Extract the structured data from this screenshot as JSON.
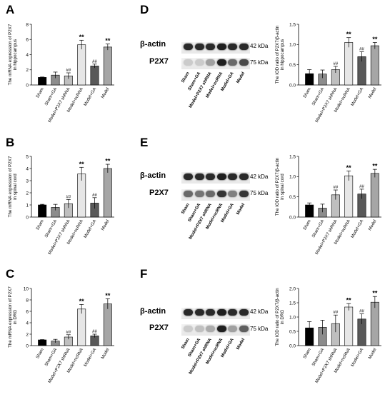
{
  "panels": {
    "a": {
      "letter": "A"
    },
    "b": {
      "letter": "B"
    },
    "c": {
      "letter": "C"
    },
    "d": {
      "letter": "D",
      "beta": "β-actin",
      "p2x7": "P2X7",
      "kda_beta": "42 kDa",
      "kda_p2x7": "75 kDa"
    },
    "e": {
      "letter": "E",
      "beta": "β-actin",
      "p2x7": "P2X7",
      "kda_beta": "42 kDa",
      "kda_p2x7": "75 kDa"
    },
    "f": {
      "letter": "F",
      "beta": "β-actin",
      "p2x7": "P2X7",
      "kda_beta": "42 kDa",
      "kda_p2x7": "75 kDa"
    }
  },
  "blot_lanes": [
    "Sham",
    "Sham+GA",
    "Model+P2X7 shRNA",
    "Model+ncRNA",
    "Model+GA",
    "Model"
  ],
  "blot_intensity": {
    "d": {
      "beta": [
        0.9,
        0.9,
        0.9,
        0.95,
        0.9,
        0.9
      ],
      "p2x7": [
        0.15,
        0.15,
        0.35,
        0.95,
        0.6,
        0.75
      ]
    },
    "e": {
      "beta": [
        0.9,
        0.9,
        0.9,
        0.95,
        0.9,
        0.9
      ],
      "p2x7": [
        0.6,
        0.55,
        0.6,
        0.85,
        0.5,
        0.85
      ]
    },
    "f": {
      "beta": [
        0.9,
        0.9,
        0.9,
        0.95,
        0.9,
        0.9
      ],
      "p2x7": [
        0.15,
        0.2,
        0.3,
        0.95,
        0.35,
        0.65
      ]
    }
  },
  "chart_data": [
    {
      "id": "a",
      "type": "bar",
      "ylabel": [
        "The mRNA expression of P2X7",
        "in hippocampus"
      ],
      "categories": [
        "Sham",
        "Sham+GA",
        "Model+P2X7 shRNA",
        "Model+ncRNA",
        "Model+GA",
        "Model"
      ],
      "values": [
        1.0,
        1.3,
        1.2,
        5.3,
        2.5,
        5.0
      ],
      "errors": [
        0.05,
        0.4,
        0.4,
        0.6,
        0.25,
        0.4
      ],
      "ylim": [
        0,
        8
      ],
      "yticks": [
        0,
        2,
        4,
        6,
        8
      ],
      "annotations": [
        "",
        "",
        "##",
        "**",
        "##",
        "**"
      ]
    },
    {
      "id": "b",
      "type": "bar",
      "ylabel": [
        "The mRNA expression of P2X7",
        "in spinal cord"
      ],
      "categories": [
        "Sham",
        "Sham+GA",
        "Model+P2X7 shRNA",
        "Model+ncRNA",
        "Model+GA",
        "Model"
      ],
      "values": [
        1.0,
        0.8,
        1.1,
        3.55,
        1.15,
        4.0
      ],
      "errors": [
        0.05,
        0.25,
        0.35,
        0.55,
        0.45,
        0.35
      ],
      "ylim": [
        0,
        5
      ],
      "yticks": [
        0,
        1,
        2,
        3,
        4,
        5
      ],
      "annotations": [
        "",
        "",
        "##",
        "**",
        "##",
        "**"
      ]
    },
    {
      "id": "c",
      "type": "bar",
      "ylabel": [
        "The mRNA expression of P2X7",
        "in DRG"
      ],
      "categories": [
        "Sham",
        "Sham+GA",
        "Model+P2X7 shRNA",
        "Model+ncRNA",
        "Model+GA",
        "Model"
      ],
      "values": [
        1.0,
        0.8,
        1.5,
        6.4,
        1.7,
        7.3
      ],
      "errors": [
        0.05,
        0.3,
        0.4,
        0.8,
        0.3,
        0.9
      ],
      "ylim": [
        0,
        10
      ],
      "yticks": [
        0,
        2,
        4,
        6,
        8,
        10
      ],
      "annotations": [
        "",
        "",
        "##",
        "**",
        "##",
        "**"
      ]
    },
    {
      "id": "d",
      "type": "bar",
      "ylabel": [
        "The IOD ratio of P2X7/β-actin",
        "in hippocampus"
      ],
      "categories": [
        "Sham",
        "Sham+GA",
        "Model+P2X7 shRNA",
        "Model+ncRNA",
        "Model+GA",
        "Model"
      ],
      "values": [
        0.28,
        0.27,
        0.38,
        1.05,
        0.7,
        0.97
      ],
      "errors": [
        0.1,
        0.1,
        0.08,
        0.12,
        0.12,
        0.08
      ],
      "ylim": [
        0,
        1.5
      ],
      "yticks": [
        0.0,
        0.5,
        1.0,
        1.5
      ],
      "annotations": [
        "",
        "",
        "##",
        "**",
        "##",
        "**"
      ]
    },
    {
      "id": "e",
      "type": "bar",
      "ylabel": [
        "The IOD ratio of P2X7/β-actin",
        "in spinal cord"
      ],
      "categories": [
        "Sham",
        "Sham+GA",
        "Model+P2X7 shRNA",
        "Model+ncRNA",
        "Model+GA",
        "Model"
      ],
      "values": [
        0.3,
        0.22,
        0.55,
        1.02,
        0.57,
        1.08
      ],
      "errors": [
        0.05,
        0.1,
        0.12,
        0.12,
        0.12,
        0.1
      ],
      "ylim": [
        0,
        1.5
      ],
      "yticks": [
        0.0,
        0.5,
        1.0,
        1.5
      ],
      "annotations": [
        "",
        "",
        "##",
        "**",
        "##",
        "**"
      ]
    },
    {
      "id": "f",
      "type": "bar",
      "ylabel": [
        "The IOD ratio of P2X7/β-actin",
        "in DRG"
      ],
      "categories": [
        "Sham",
        "Sham+GA",
        "Model+P2X7 shRNA",
        "Model+ncRNA",
        "Model+GA",
        "Model"
      ],
      "values": [
        0.62,
        0.64,
        0.77,
        1.35,
        0.93,
        1.52
      ],
      "errors": [
        0.22,
        0.25,
        0.3,
        0.12,
        0.18,
        0.2
      ],
      "ylim": [
        0,
        2.0
      ],
      "yticks": [
        0.0,
        0.5,
        1.0,
        1.5,
        2.0
      ],
      "annotations": [
        "",
        "",
        "##",
        "**",
        "##",
        "**"
      ]
    }
  ],
  "colors": {
    "bars": [
      "#000000",
      "#8c8c8c",
      "#bfbfbf",
      "#e6e6e6",
      "#595959",
      "#a6a6a6"
    ],
    "axis": "#000000"
  }
}
